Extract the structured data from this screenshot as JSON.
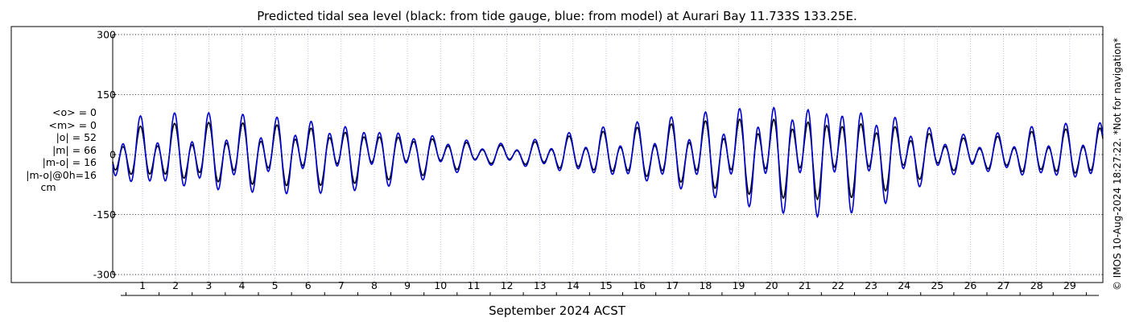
{
  "chart_data": {
    "type": "line",
    "title": "Predicted tidal sea level (black: from tide gauge, blue: from model) at Aurari Bay 11.733S 133.25E.",
    "xlabel": "September 2024 ACST",
    "ylabel": "",
    "xlim": [
      0.1,
      30.0
    ],
    "ylim": [
      -320,
      320
    ],
    "yticks": [
      -300,
      -150,
      0,
      150,
      300
    ],
    "xticks": [
      "1",
      "2",
      "3",
      "4",
      "5",
      "6",
      "7",
      "8",
      "9",
      "10",
      "11",
      "12",
      "13",
      "14",
      "15",
      "16",
      "17",
      "18",
      "19",
      "20",
      "21",
      "22",
      "23",
      "24",
      "25",
      "26",
      "27",
      "28",
      "29"
    ],
    "grid": "dotted",
    "series": [
      {
        "name": "tide gauge",
        "color": "#000000",
        "x": [
          0.5,
          1.5,
          2.5,
          3.5,
          4.5,
          5.5,
          6.5,
          7.5,
          8.5,
          9.5,
          10.5,
          11.5,
          12.5,
          13.5,
          14.5,
          15.5,
          16.5,
          17.5,
          18.5,
          19.5,
          20.5,
          21.5,
          22.5,
          23.5,
          24.5,
          25.5,
          26.5,
          27.5,
          28.5,
          29.5
        ],
        "amplitude": [
          60,
          68,
          72,
          75,
          75,
          74,
          70,
          64,
          56,
          47,
          35,
          22,
          25,
          38,
          48,
          57,
          66,
          76,
          86,
          95,
          100,
          100,
          96,
          82,
          58,
          40,
          38,
          50,
          55,
          60
        ],
        "amplitude_note": "half-range in cm, as read from the curve"
      },
      {
        "name": "model",
        "color": "#0000cc",
        "x": [
          0.5,
          1.5,
          2.5,
          3.5,
          4.5,
          5.5,
          6.5,
          7.5,
          8.5,
          9.5,
          10.5,
          11.5,
          12.5,
          13.5,
          14.5,
          15.5,
          16.5,
          17.5,
          18.5,
          19.5,
          20.5,
          21.5,
          22.5,
          23.5,
          24.5,
          25.5,
          26.5,
          27.5,
          28.5,
          29.5
        ],
        "amplitude": [
          82,
          92,
          95,
          96,
          95,
          93,
          88,
          80,
          70,
          57,
          42,
          26,
          30,
          45,
          57,
          68,
          80,
          95,
          110,
          125,
          135,
          140,
          130,
          110,
          75,
          50,
          45,
          60,
          68,
          72
        ]
      }
    ]
  },
  "stats": {
    "mean_obs": "<o> = 0",
    "mean_model": "<m> = 0",
    "abs_obs": "|o| = 52",
    "abs_model": "|m| = 66",
    "abs_diff": "|m-o| = 16",
    "abs_diff_0h": "|m-o|@0h=16",
    "unit": "cm"
  },
  "watermark": "© IMOS 10-Aug-2024 18:27:22. *Not for navigation*"
}
